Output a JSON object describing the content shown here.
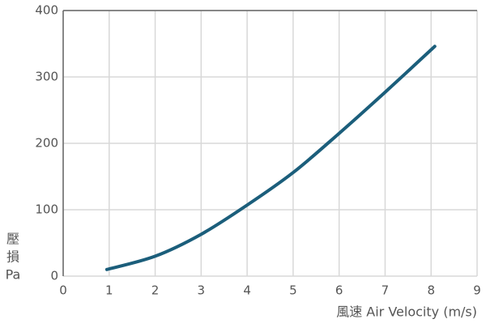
{
  "chart_data": {
    "type": "line",
    "x_label": "風速  Air Velocity (m/s)",
    "y_label": [
      "壓",
      "損",
      "Pa"
    ],
    "x": [
      0.95,
      2,
      3,
      4,
      5,
      6,
      7,
      8.08
    ],
    "series": [
      {
        "color": "#1b5e7b",
        "values": [
          10,
          30,
          63,
          107,
          156,
          215,
          277,
          346
        ]
      }
    ],
    "xlim": [
      0,
      9
    ],
    "xticks": [
      0,
      1,
      2,
      3,
      4,
      5,
      6,
      7,
      8,
      9
    ],
    "ylim": [
      0,
      400
    ],
    "yticks": [
      0,
      100,
      200,
      300,
      400
    ],
    "grid": true
  }
}
